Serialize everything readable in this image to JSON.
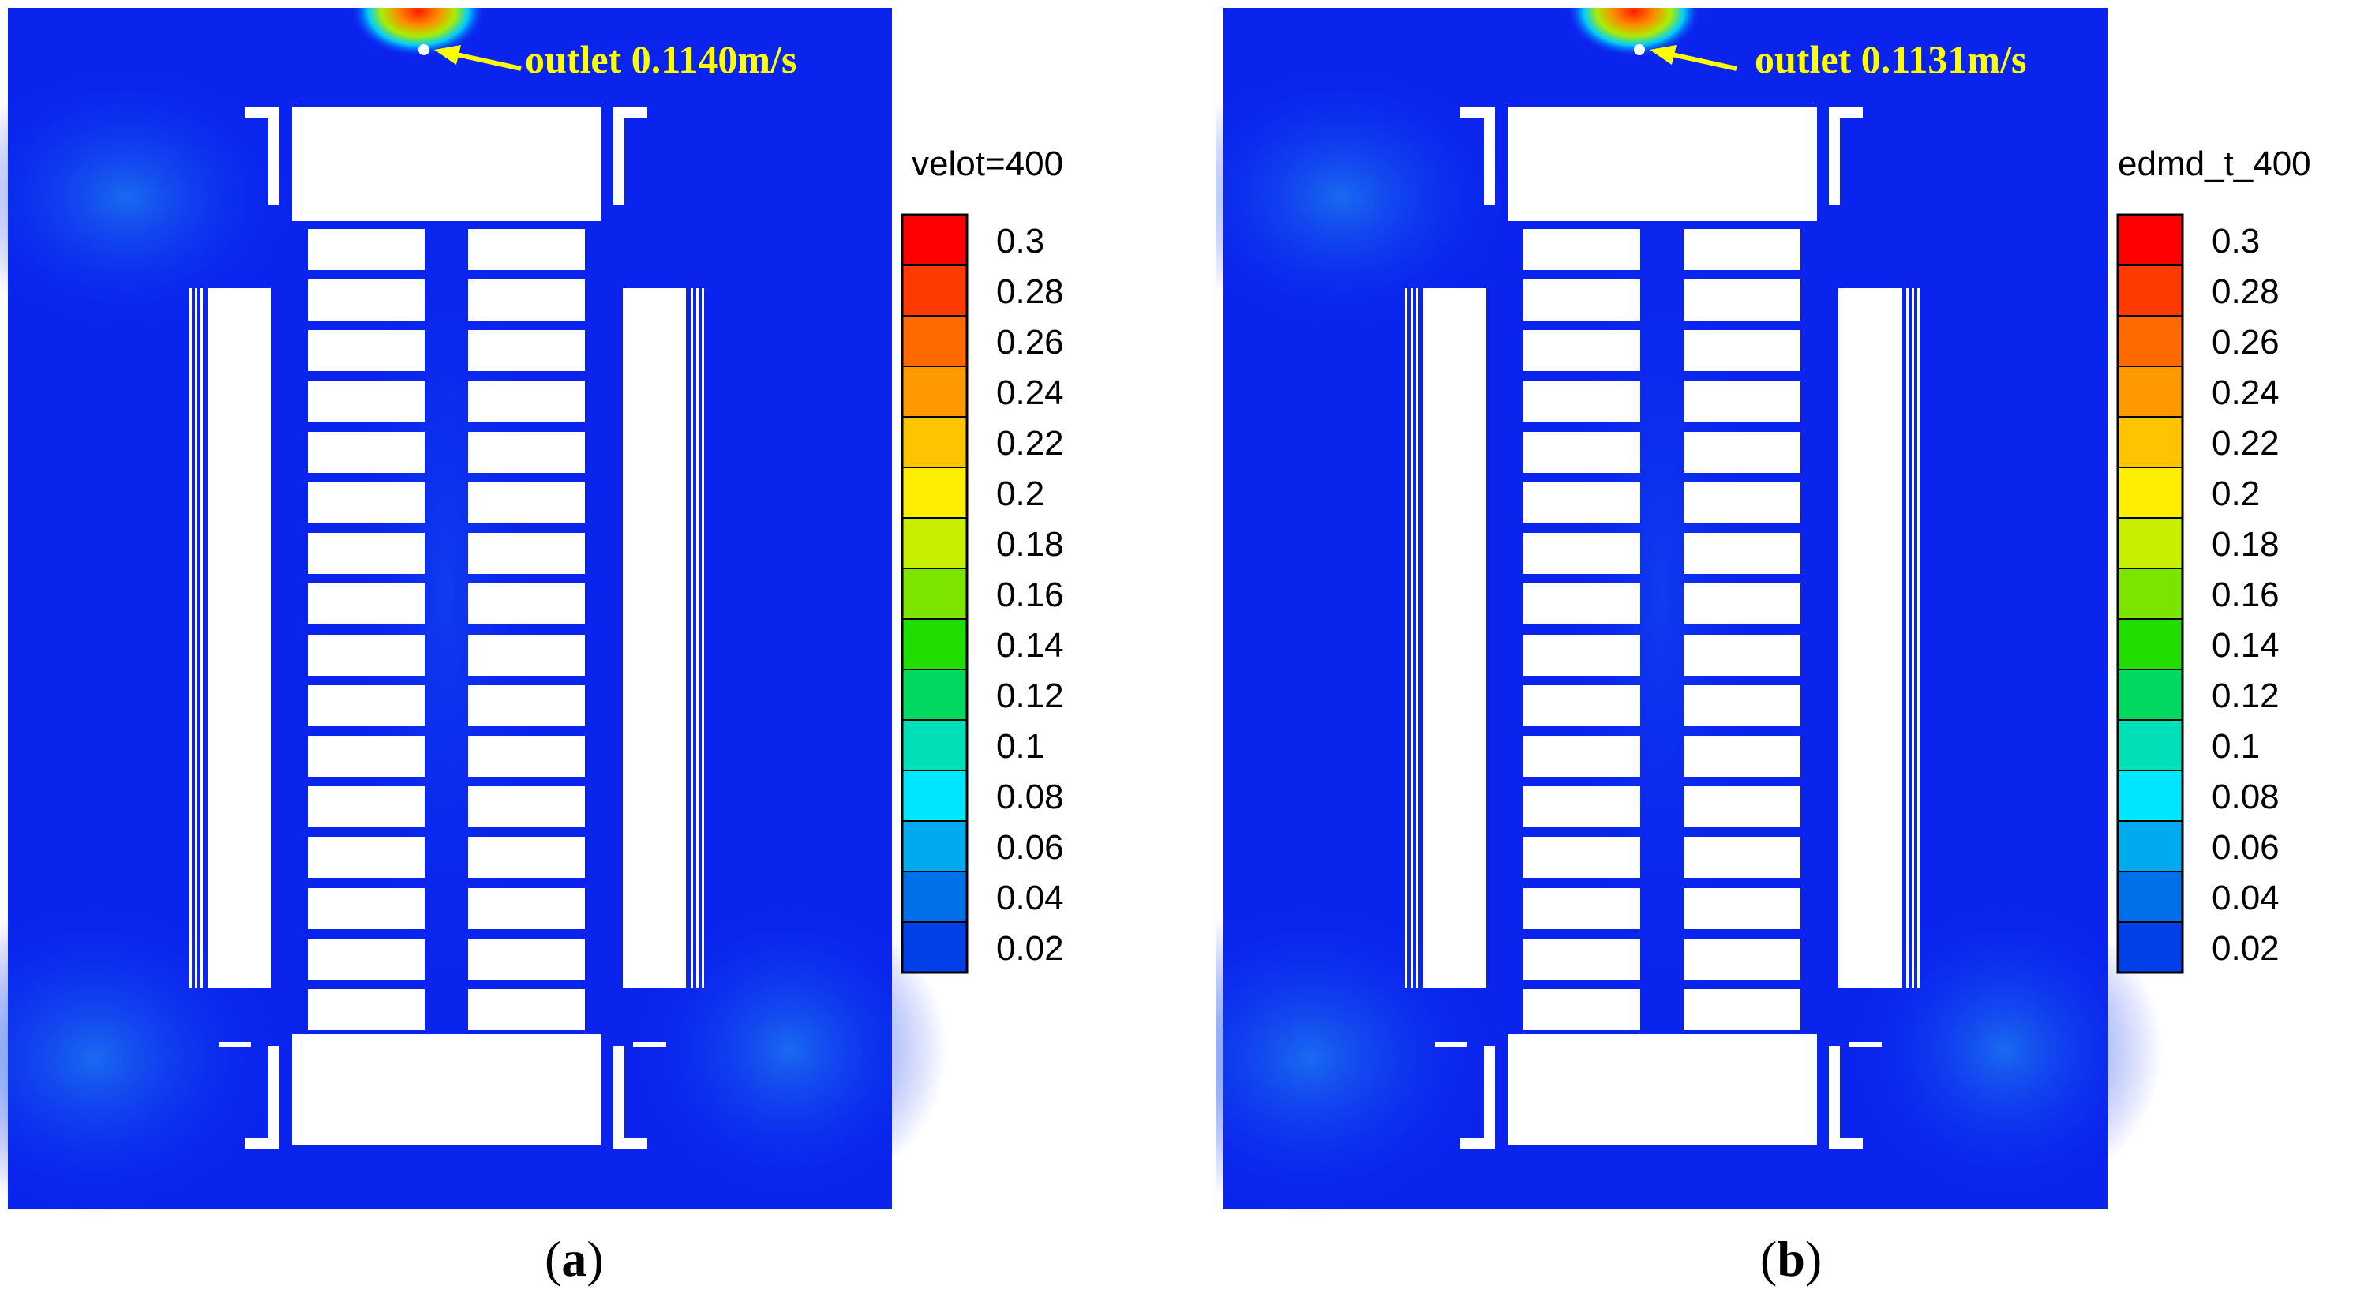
{
  "panels": [
    {
      "id": "a",
      "outlet_label": "outlet 0.1140m/s",
      "colorbar_title": "velot=400",
      "caption_letter": "a"
    },
    {
      "id": "b",
      "outlet_label": "outlet 0.1131m/s",
      "colorbar_title": "edmd_t_400",
      "caption_letter": "b"
    }
  ],
  "colorbar": {
    "ticks": [
      "0.3",
      "0.28",
      "0.26",
      "0.24",
      "0.22",
      "0.2",
      "0.18",
      "0.16",
      "0.14",
      "0.12",
      "0.1",
      "0.08",
      "0.06",
      "0.04",
      "0.02"
    ],
    "colors": [
      "#ff0000",
      "#ff3a00",
      "#ff6a00",
      "#ff9900",
      "#ffc400",
      "#ffee00",
      "#c8ee00",
      "#7de400",
      "#22dd00",
      "#00d860",
      "#00e0b8",
      "#00e6ff",
      "#00aaee",
      "#0070e8",
      "#0040e6"
    ]
  },
  "field_colors": {
    "background": "#0a24ee",
    "halo": "#1c72f0",
    "outlet_hot": "#ff1a00",
    "label": "#ffff00"
  }
}
